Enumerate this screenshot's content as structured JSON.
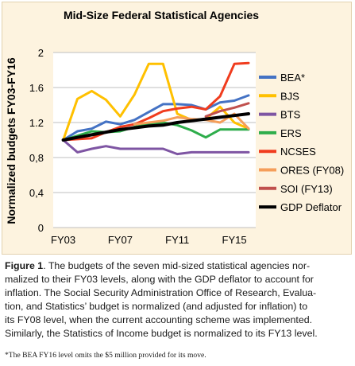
{
  "colors": {
    "panel_background": "#fdf3df",
    "plot_background": "#ffffff",
    "grid": "#bfbfbf"
  },
  "chart_data": {
    "type": "line",
    "title": "Mid-Size Federal Statistical Agencies",
    "ylabel": "Normalized budgets FY03-FY16",
    "xlabel": "",
    "x": [
      2003,
      2004,
      2005,
      2006,
      2007,
      2008,
      2009,
      2010,
      2011,
      2012,
      2013,
      2014,
      2015,
      2016
    ],
    "xticks": [
      {
        "value": 2003,
        "label": "FY03"
      },
      {
        "value": 2007,
        "label": "FY07"
      },
      {
        "value": 2011,
        "label": "FY11"
      },
      {
        "value": 2015,
        "label": "FY15"
      }
    ],
    "xlim": [
      2002.3,
      2016.5
    ],
    "ylim": [
      0,
      2
    ],
    "yticks": [
      {
        "value": 0,
        "label": "0"
      },
      {
        "value": 0.4,
        "label": "0,4"
      },
      {
        "value": 0.8,
        "label": "0,8"
      },
      {
        "value": 1.2,
        "label": "1.2"
      },
      {
        "value": 1.6,
        "label": "1.6"
      },
      {
        "value": 2,
        "label": "2"
      }
    ],
    "grid": "horizontal",
    "legend_position": "right",
    "series": [
      {
        "name": "BEA*",
        "color": "#4472c4",
        "width": 3,
        "x": [
          2003,
          2004,
          2005,
          2006,
          2007,
          2008,
          2009,
          2010,
          2011,
          2012,
          2013,
          2014,
          2015,
          2016
        ],
        "values": [
          1.0,
          1.1,
          1.13,
          1.21,
          1.18,
          1.23,
          1.32,
          1.41,
          1.41,
          1.4,
          1.35,
          1.43,
          1.45,
          1.51
        ]
      },
      {
        "name": "BJS",
        "color": "#ffc000",
        "width": 3,
        "x": [
          2003,
          2004,
          2005,
          2006,
          2007,
          2008,
          2009,
          2010,
          2011,
          2012,
          2013,
          2014,
          2015,
          2016
        ],
        "values": [
          1.0,
          1.47,
          1.56,
          1.46,
          1.27,
          1.52,
          1.87,
          1.87,
          1.3,
          1.23,
          1.24,
          1.38,
          1.2,
          1.13
        ]
      },
      {
        "name": "BTS",
        "color": "#7e55a3",
        "width": 3,
        "x": [
          2003,
          2004,
          2005,
          2006,
          2007,
          2008,
          2009,
          2010,
          2011,
          2012,
          2013,
          2014,
          2015,
          2016
        ],
        "values": [
          1.0,
          0.86,
          0.9,
          0.93,
          0.9,
          0.9,
          0.9,
          0.9,
          0.84,
          0.86,
          0.86,
          0.86,
          0.86,
          0.86
        ]
      },
      {
        "name": "ERS",
        "color": "#2ead4b",
        "width": 3,
        "x": [
          2003,
          2004,
          2005,
          2006,
          2007,
          2008,
          2009,
          2010,
          2011,
          2012,
          2013,
          2014,
          2015,
          2016
        ],
        "values": [
          1.0,
          1.05,
          1.1,
          1.09,
          1.1,
          1.15,
          1.18,
          1.2,
          1.17,
          1.11,
          1.03,
          1.12,
          1.12,
          1.12
        ]
      },
      {
        "name": "NCSES",
        "color": "#f03c1e",
        "width": 3,
        "x": [
          2003,
          2004,
          2005,
          2006,
          2007,
          2008,
          2009,
          2010,
          2011,
          2012,
          2013,
          2014,
          2015,
          2016
        ],
        "values": [
          1.0,
          1.01,
          1.02,
          1.09,
          1.15,
          1.18,
          1.25,
          1.33,
          1.36,
          1.38,
          1.35,
          1.5,
          1.87,
          1.88
        ]
      },
      {
        "name": "ORES (FY08)",
        "color": "#f59e5a",
        "width": 3,
        "x": [
          2008,
          2009,
          2010,
          2011,
          2012,
          2013,
          2014,
          2015,
          2016
        ],
        "values": [
          1.18,
          1.2,
          1.22,
          1.26,
          1.24,
          1.23,
          1.2,
          1.3,
          1.13
        ]
      },
      {
        "name": "SOI (FY13)",
        "color": "#c0504d",
        "width": 3,
        "x": [
          2013,
          2014,
          2015,
          2016
        ],
        "values": [
          1.27,
          1.33,
          1.37,
          1.42
        ]
      },
      {
        "name": "GDP Deflator",
        "color": "#000000",
        "width": 4,
        "x": [
          2003,
          2004,
          2005,
          2006,
          2007,
          2008,
          2009,
          2010,
          2011,
          2012,
          2013,
          2014,
          2015,
          2016
        ],
        "values": [
          1.0,
          1.03,
          1.06,
          1.09,
          1.12,
          1.14,
          1.16,
          1.17,
          1.2,
          1.22,
          1.24,
          1.26,
          1.28,
          1.3
        ]
      }
    ]
  },
  "caption": {
    "label": "Figure 1",
    "lines": [
      ". The budgets of the seven mid-sized statistical agencies nor-",
      "malized to their FY03 levels, along with the GDP deflator to account for",
      "inflation. The Social Security Administration Office of Research, Evalua-",
      "tion, and Statistics’ budget is normalized (and adjusted for inflation) to",
      "its FY08 level, when the current accounting scheme was implemented.",
      "Similarly, the Statistics of Income budget is normalized to its FY13 level."
    ],
    "footnote": "*The BEA FY16 level omits the $5 million provided for its move."
  }
}
